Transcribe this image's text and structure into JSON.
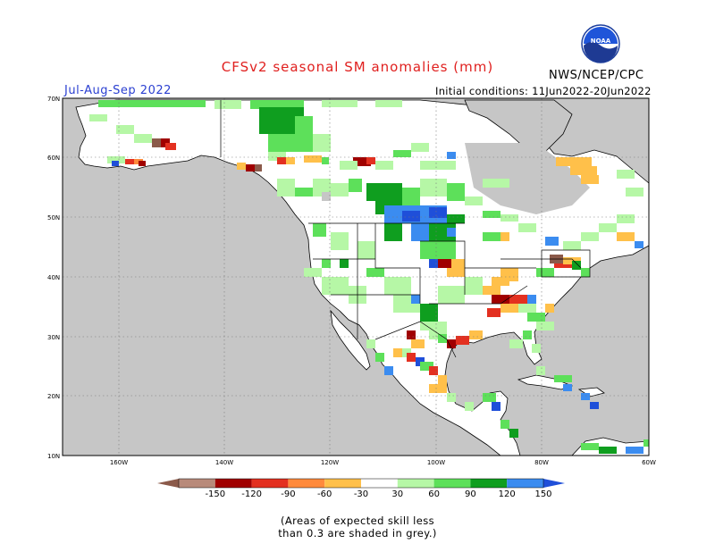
{
  "title": "CFSv2 seasonal SM anomalies (mm)",
  "season": "Jul-Aug-Sep 2022",
  "agency": "NWS/NCEP/CPC",
  "logo_text": "NOAA",
  "initial_conditions": "Initial conditions: 11Jun2022-20Jun2022",
  "lat_labels": [
    "70N",
    "60N",
    "50N",
    "40N",
    "30N",
    "20N",
    "10N"
  ],
  "lon_labels": [
    "160W",
    "140W",
    "120W",
    "100W",
    "80W",
    "60W"
  ],
  "colorbar": {
    "labels": [
      "-150",
      "-120",
      "-90",
      "-60",
      "-30",
      "30",
      "60",
      "90",
      "120",
      "150"
    ],
    "colors": [
      "#8b5a4a",
      "#b88a7a",
      "#a00000",
      "#e33020",
      "#ff8a3c",
      "#ffc04a",
      "#ffffff",
      "#b6f7a6",
      "#5de05a",
      "#0f9e1f",
      "#3b8cf0",
      "#1f4fd9"
    ]
  },
  "note_line1": "(Areas of expected skill less",
  "note_line2": "than 0.3 are shaded in grey.)",
  "colors": {
    "ocean": "#c6c6c6",
    "land": "#ffffff",
    "title": "#e0201f",
    "season": "#2a3fd1"
  }
}
